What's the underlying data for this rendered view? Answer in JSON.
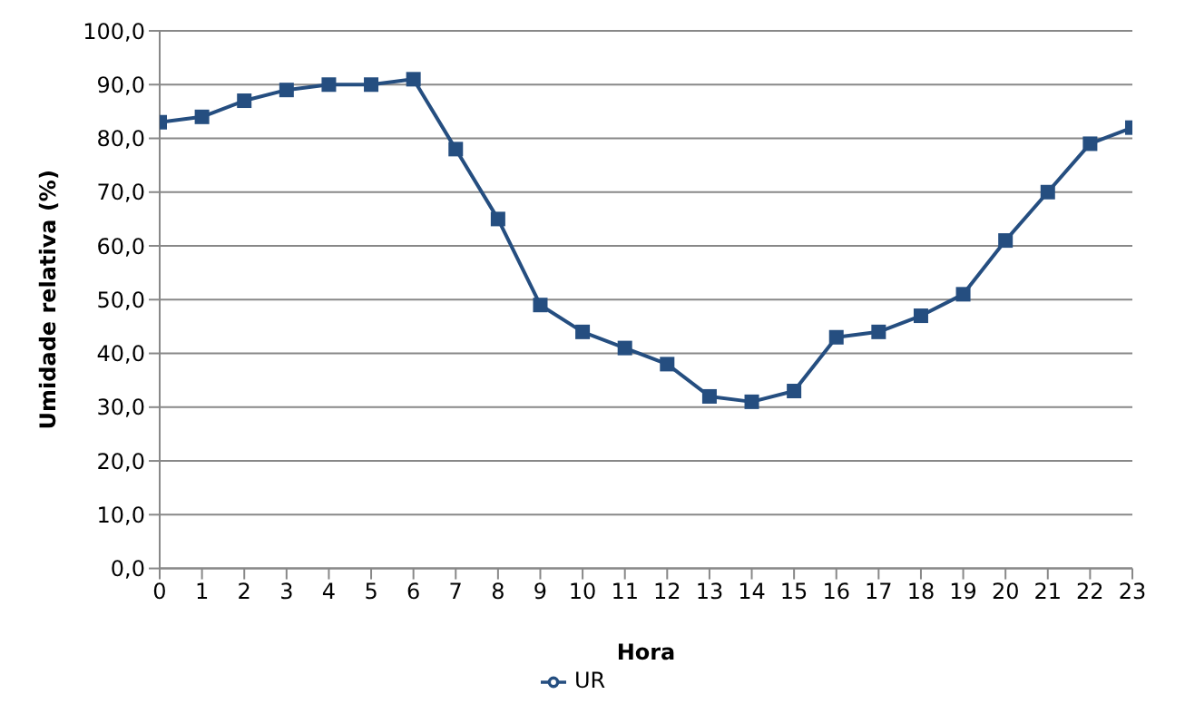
{
  "chart_data": {
    "type": "line",
    "xlabel": "Hora",
    "ylabel": "Umidade relativa (%)",
    "x": [
      0,
      1,
      2,
      3,
      4,
      5,
      6,
      7,
      8,
      9,
      10,
      11,
      12,
      13,
      14,
      15,
      16,
      17,
      18,
      19,
      20,
      21,
      22,
      23
    ],
    "series": [
      {
        "name": "UR",
        "color": "#254e80",
        "values": [
          83,
          84,
          87,
          89,
          90,
          90,
          91,
          78,
          65,
          49,
          44,
          41,
          38,
          32,
          31,
          33,
          43,
          44,
          47,
          51,
          61,
          70,
          79,
          82
        ]
      }
    ],
    "xlim": [
      0,
      23
    ],
    "xticks": [
      0,
      1,
      2,
      3,
      4,
      5,
      6,
      7,
      8,
      9,
      10,
      11,
      12,
      13,
      14,
      15,
      16,
      17,
      18,
      19,
      20,
      21,
      22,
      23
    ],
    "ylim": [
      0,
      100
    ],
    "yticks": [
      {
        "value": 0,
        "label": "0,0"
      },
      {
        "value": 10,
        "label": "10,0"
      },
      {
        "value": 20,
        "label": "20,0"
      },
      {
        "value": 30,
        "label": "30,0"
      },
      {
        "value": 40,
        "label": "40,0"
      },
      {
        "value": 50,
        "label": "50,0"
      },
      {
        "value": 60,
        "label": "60,0"
      },
      {
        "value": 70,
        "label": "70,0"
      },
      {
        "value": 80,
        "label": "80,0"
      },
      {
        "value": 90,
        "label": "90,0"
      },
      {
        "value": 100,
        "label": "100,0"
      }
    ],
    "grid": "y",
    "legend": "bottom",
    "marker": "square",
    "line_style": "solid"
  }
}
